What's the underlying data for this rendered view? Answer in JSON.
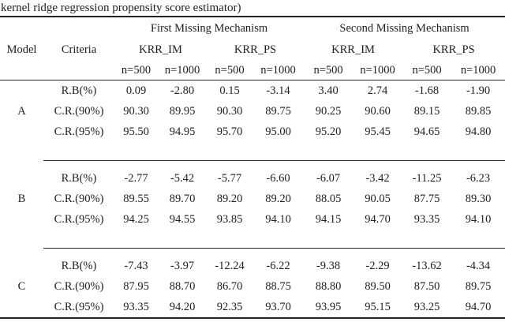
{
  "page": {
    "caption": "kernel ridge regression propensity score estimator)"
  },
  "colors": {
    "text": "#1f1f1f",
    "rule": "#2a2a2a",
    "background": "#ffffff"
  },
  "table": {
    "group_headers": [
      "First Missing Mechanism",
      "Second Missing Mechanism"
    ],
    "corner": {
      "model": "Model",
      "criteria": "Criteria"
    },
    "method_headers": [
      "KRR_IM",
      "KRR_PS",
      "KRR_IM",
      "KRR_PS"
    ],
    "sample_headers": [
      "n=500",
      "n=1000",
      "n=500",
      "n=1000",
      "n=500",
      "n=1000",
      "n=500",
      "n=1000"
    ],
    "blocks": [
      {
        "model": "A",
        "rows": [
          {
            "criteria": "R.B(%)",
            "values": [
              "0.09",
              "-2.80",
              "0.15",
              "-3.14",
              "3.40",
              "2.74",
              "-1.68",
              "-1.90"
            ]
          },
          {
            "criteria": "C.R.(90%)",
            "values": [
              "90.30",
              "89.95",
              "90.30",
              "89.75",
              "90.25",
              "90.60",
              "89.15",
              "89.85"
            ]
          },
          {
            "criteria": "C.R.(95%)",
            "values": [
              "95.50",
              "94.95",
              "95.70",
              "95.00",
              "95.20",
              "95.45",
              "94.65",
              "94.80"
            ]
          }
        ]
      },
      {
        "model": "B",
        "rows": [
          {
            "criteria": "R.B(%)",
            "values": [
              "-2.77",
              "-5.42",
              "-5.77",
              "-6.60",
              "-6.07",
              "-3.42",
              "-11.25",
              "-6.23"
            ]
          },
          {
            "criteria": "C.R.(90%)",
            "values": [
              "89.55",
              "89.70",
              "89.20",
              "89.20",
              "88.05",
              "90.05",
              "87.75",
              "89.30"
            ]
          },
          {
            "criteria": "C.R.(95%)",
            "values": [
              "94.25",
              "94.55",
              "93.85",
              "94.10",
              "94.15",
              "94.70",
              "93.35",
              "94.10"
            ]
          }
        ]
      },
      {
        "model": "C",
        "rows": [
          {
            "criteria": "R.B(%)",
            "values": [
              "-7.43",
              "-3.97",
              "-12.24",
              "-6.22",
              "-9.38",
              "-2.29",
              "-13.62",
              "-4.34"
            ]
          },
          {
            "criteria": "C.R.(90%)",
            "values": [
              "87.95",
              "88.70",
              "86.70",
              "88.75",
              "88.80",
              "89.50",
              "87.50",
              "89.75"
            ]
          },
          {
            "criteria": "C.R.(95%)",
            "values": [
              "93.35",
              "94.20",
              "92.35",
              "93.70",
              "93.95",
              "95.15",
              "93.25",
              "94.70"
            ]
          }
        ]
      }
    ]
  }
}
